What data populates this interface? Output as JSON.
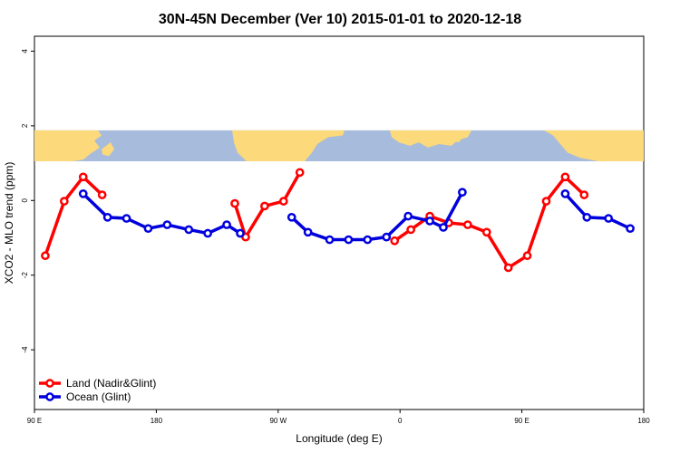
{
  "chart_data": {
    "type": "line",
    "title": "30N-45N December (Ver 10)   2015-01-01 to 2020-12-18",
    "xlabel": "Longitude (deg E)",
    "ylabel": "XCO2 - MLO trend (ppm)",
    "x_ticks": [
      {
        "value": 90,
        "label": "90 E"
      },
      {
        "value": 180,
        "label": "180"
      },
      {
        "value": 270,
        "label": "90 W"
      },
      {
        "value": 360,
        "label": "0"
      },
      {
        "value": 450,
        "label": "90 E"
      },
      {
        "value": 540,
        "label": "180"
      }
    ],
    "y_ticks": [
      {
        "value": -4,
        "label": "-4"
      },
      {
        "value": -2,
        "label": "-2"
      },
      {
        "value": 0,
        "label": "0"
      },
      {
        "value": 2,
        "label": "2"
      },
      {
        "value": 4,
        "label": "4"
      }
    ],
    "xlim": [
      90,
      540
    ],
    "ylim": [
      -5.6,
      4.4
    ],
    "map_band": {
      "ymin": 1.05,
      "ymax": 1.88,
      "ocean_color": "#a7bcdc",
      "land_color": "#fcd97a"
    },
    "legend": {
      "position": "bottom-left"
    },
    "series": [
      {
        "name": "Land (Nadir&Glint)",
        "color": "#ff0000",
        "segments": [
          [
            [
              98,
              -1.48
            ],
            [
              112,
              -0.02
            ],
            [
              126,
              0.63
            ],
            [
              140,
              0.15
            ]
          ],
          [
            [
              238,
              -0.08
            ],
            [
              246,
              -0.98
            ],
            [
              260,
              -0.15
            ],
            [
              274,
              -0.02
            ],
            [
              286,
              0.75
            ]
          ],
          [
            [
              356,
              -1.08
            ],
            [
              368,
              -0.78
            ],
            [
              382,
              -0.42
            ],
            [
              396,
              -0.6
            ],
            [
              410,
              -0.65
            ],
            [
              424,
              -0.85
            ],
            [
              440,
              -1.8
            ],
            [
              454,
              -1.48
            ],
            [
              468,
              -0.02
            ],
            [
              482,
              0.63
            ],
            [
              496,
              0.15
            ]
          ]
        ]
      },
      {
        "name": "Ocean (Glint)",
        "color": "#0000dd",
        "segments": [
          [
            [
              126,
              0.18
            ],
            [
              144,
              -0.45
            ],
            [
              158,
              -0.48
            ],
            [
              174,
              -0.75
            ],
            [
              188,
              -0.65
            ],
            [
              204,
              -0.78
            ],
            [
              218,
              -0.88
            ],
            [
              232,
              -0.65
            ],
            [
              242,
              -0.88
            ]
          ],
          [
            [
              280,
              -0.45
            ],
            [
              292,
              -0.85
            ],
            [
              308,
              -1.05
            ],
            [
              322,
              -1.05
            ],
            [
              336,
              -1.05
            ],
            [
              350,
              -0.98
            ],
            [
              366,
              -0.42
            ],
            [
              382,
              -0.55
            ],
            [
              392,
              -0.72
            ],
            [
              406,
              0.22
            ]
          ],
          [
            [
              482,
              0.18
            ],
            [
              498,
              -0.45
            ],
            [
              514,
              -0.48
            ],
            [
              530,
              -0.75
            ]
          ]
        ]
      }
    ]
  }
}
